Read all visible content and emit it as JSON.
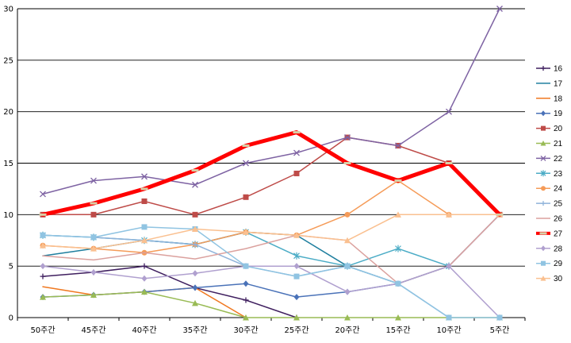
{
  "chart_data": {
    "type": "line",
    "title": "",
    "xlabel": "",
    "ylabel": "",
    "categories": [
      "50주간",
      "45주간",
      "40주간",
      "35주간",
      "30주간",
      "25주간",
      "20주간",
      "15주간",
      "10주간",
      "5주간"
    ],
    "ylim": [
      0,
      30
    ],
    "yticks": [
      0,
      5,
      10,
      15,
      20,
      25,
      30
    ],
    "grid": true,
    "legend": "right",
    "series": [
      {
        "name": "16",
        "color": "#3f1f5f",
        "marker": "plus",
        "width": 1.5,
        "values": [
          4,
          4.4,
          5,
          2.9,
          1.7,
          0,
          null,
          null,
          null,
          null
        ]
      },
      {
        "name": "17",
        "color": "#1f7f9f",
        "marker": "none",
        "width": 1.5,
        "values": [
          6,
          6.7,
          7.5,
          7.1,
          8.3,
          8,
          5,
          3.3,
          5,
          null
        ]
      },
      {
        "name": "18",
        "color": "#f07820",
        "marker": "none",
        "width": 1.5,
        "values": [
          3,
          2.2,
          2.5,
          2.9,
          0,
          null,
          null,
          null,
          null,
          null
        ]
      },
      {
        "name": "19",
        "color": "#4a72b8",
        "marker": "diamond",
        "width": 1.5,
        "values": [
          2,
          2.2,
          2.5,
          2.9,
          3.3,
          2,
          2.5,
          3.3,
          5,
          10
        ]
      },
      {
        "name": "20",
        "color": "#be4b48",
        "marker": "square",
        "width": 1.5,
        "values": [
          10,
          10,
          11.3,
          10,
          11.7,
          14,
          17.5,
          16.7,
          15,
          10
        ]
      },
      {
        "name": "21",
        "color": "#99bb55",
        "marker": "triangle",
        "width": 1.5,
        "values": [
          2,
          2.2,
          2.5,
          1.4,
          0,
          0,
          0,
          0,
          0,
          0
        ]
      },
      {
        "name": "22",
        "color": "#7e63a3",
        "marker": "x",
        "width": 1.5,
        "values": [
          12,
          13.3,
          13.7,
          12.9,
          15,
          16,
          17.5,
          16.7,
          20,
          30
        ]
      },
      {
        "name": "23",
        "color": "#4bacc6",
        "marker": "star",
        "width": 1.5,
        "values": [
          8,
          7.8,
          7.5,
          7.1,
          8.3,
          6,
          5,
          6.7,
          5,
          null
        ]
      },
      {
        "name": "24",
        "color": "#f59b58",
        "marker": "circle",
        "width": 1.5,
        "values": [
          7,
          6.7,
          6.3,
          7.1,
          8.3,
          8,
          10,
          13.3,
          10,
          10
        ]
      },
      {
        "name": "25",
        "color": "#8fb3da",
        "marker": "plus",
        "width": 1.5,
        "values": [
          8,
          7.8,
          7.5,
          7.1,
          5,
          4,
          5,
          3.3,
          0,
          null
        ]
      },
      {
        "name": "26",
        "color": "#dba19e",
        "marker": "none",
        "width": 1.5,
        "values": [
          6,
          5.6,
          6.3,
          5.7,
          6.7,
          8,
          7.5,
          3.3,
          5,
          10
        ]
      },
      {
        "name": "27",
        "color": "#ff0000",
        "marker": "dash",
        "width": 5,
        "values": [
          10,
          11.1,
          12.5,
          14.3,
          16.7,
          18,
          15,
          13.3,
          15,
          10
        ]
      },
      {
        "name": "28",
        "color": "#b0a0cf",
        "marker": "diamond",
        "width": 1.5,
        "values": [
          5,
          4.4,
          3.8,
          4.3,
          5,
          5,
          2.5,
          3.3,
          5,
          0
        ]
      },
      {
        "name": "29",
        "color": "#90c4e2",
        "marker": "square",
        "width": 1.5,
        "values": [
          8,
          7.8,
          8.8,
          8.6,
          5,
          4,
          5,
          3.3,
          0,
          0
        ]
      },
      {
        "name": "30",
        "color": "#fac090",
        "marker": "triangle",
        "width": 1.5,
        "values": [
          7,
          6.7,
          7.5,
          8.6,
          8.3,
          8,
          7.5,
          10,
          10,
          10
        ]
      }
    ]
  }
}
